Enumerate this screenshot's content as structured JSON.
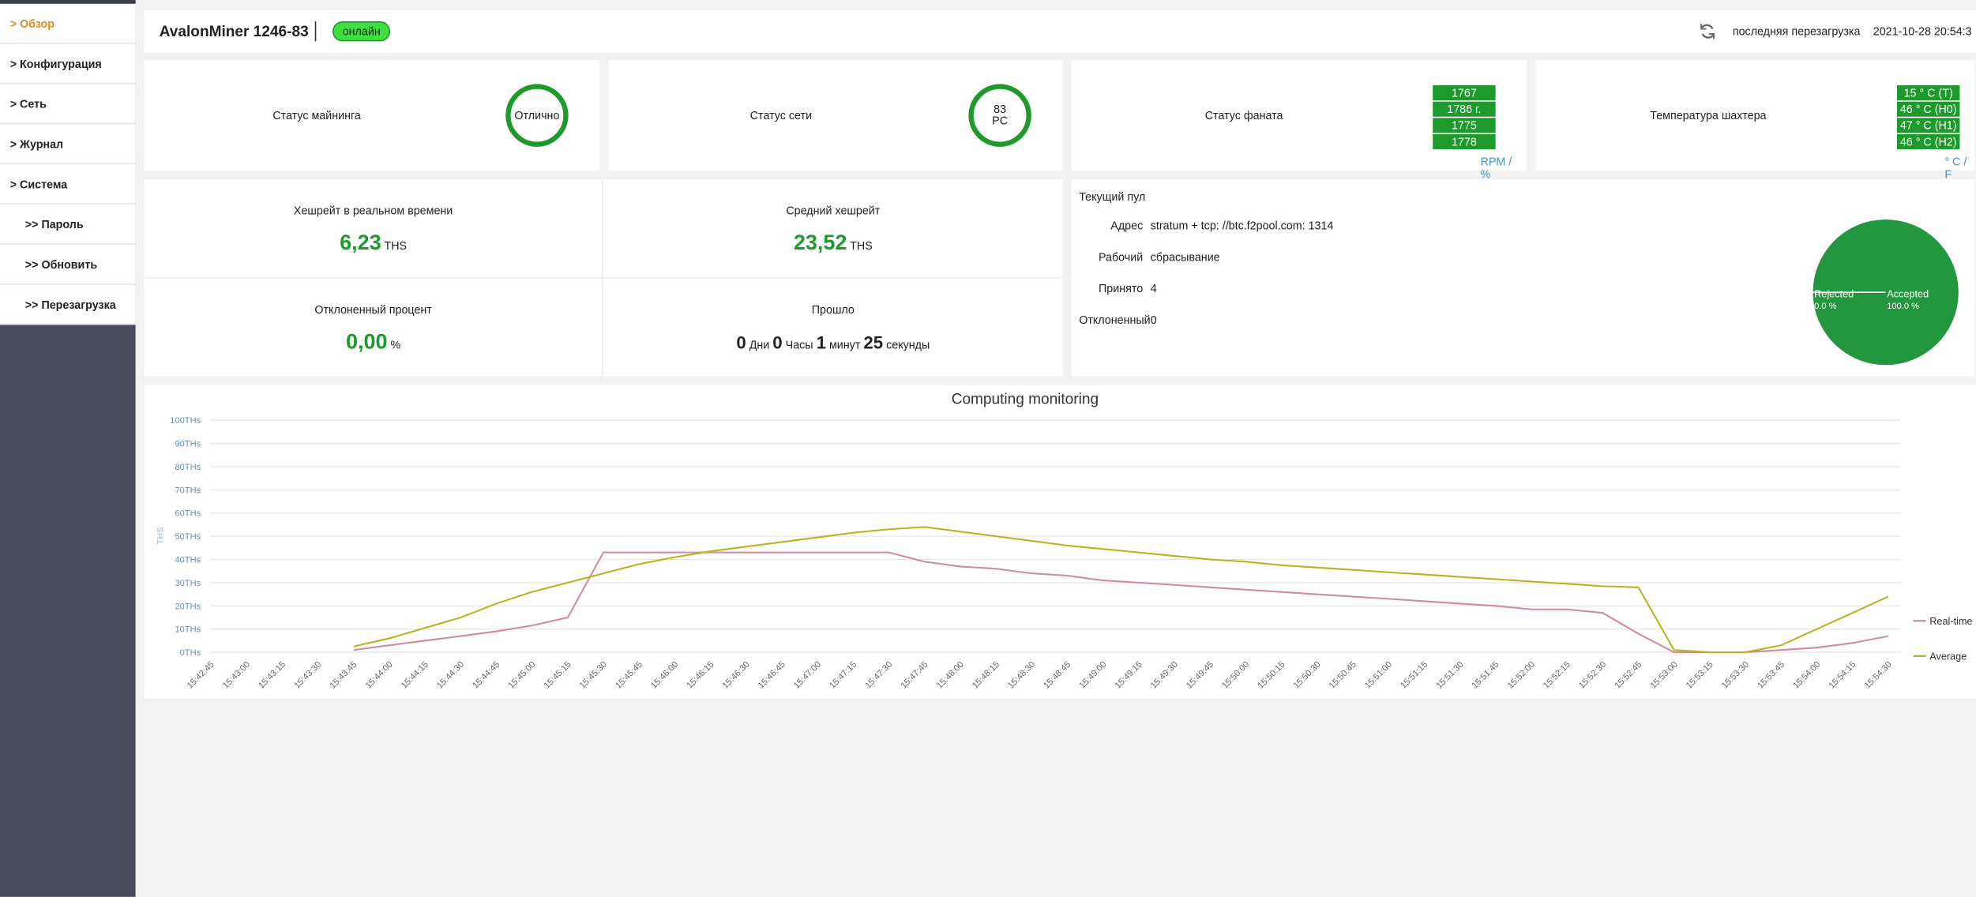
{
  "sidebar": {
    "items": [
      "> Обзор",
      "> Конфигурация",
      "> Сеть",
      "> Журнал",
      "> Система",
      ">> Пароль",
      ">> Обновить",
      ">> Перезагрузка"
    ]
  },
  "header": {
    "title": "AvalonMiner 1246-83",
    "status": "онлайн",
    "reboot_label": "последняя перезагрузка",
    "reboot_time": "2021-10-28 20:54:3"
  },
  "status_cards": [
    {
      "label": "Статус майнинга",
      "ring": "Отлично"
    },
    {
      "label": "Статус сети",
      "ring": "83 PC"
    }
  ],
  "fan": {
    "label": "Статус фаната",
    "rpm": [
      "1767",
      "1786 г.",
      "1775",
      "1778"
    ],
    "unit": "RPM / %"
  },
  "temperature": {
    "label": "Температура шахтера",
    "values": [
      "15 ° C (T)",
      "46 ° C (H0)",
      "47 ° C (H1)",
      "46 ° C (H2)"
    ],
    "unit": "° C / F"
  },
  "stats": [
    {
      "label": "Хешрейт в реальном времени",
      "value": "6,23",
      "unit": "THS"
    },
    {
      "label": "Средний хешрейт",
      "value": "23,52",
      "unit": "THS"
    },
    {
      "label": "Отклоненный процент",
      "value": "0,00",
      "unit": "%"
    }
  ],
  "elapsed": {
    "label": "Прошло",
    "parts": [
      {
        "value": "0",
        "unit": "Дни"
      },
      {
        "value": "0",
        "unit": "Часы"
      },
      {
        "value": "1",
        "unit": "минут"
      },
      {
        "value": "25",
        "unit": "секунды"
      }
    ]
  },
  "pool": {
    "title": "Текущий пул",
    "rows": [
      [
        "Адрес",
        "stratum + tcp: //btc.f2pool.com: 1314"
      ],
      [
        "Рабочий",
        "сбрасывание"
      ],
      [
        "Принято",
        "4"
      ],
      [
        "Отклоненный",
        "0"
      ]
    ]
  },
  "chart_data": [
    {
      "type": "line",
      "title": "Computing monitoring",
      "y_label": "THS",
      "categories": [
        "15:42:45",
        "15:43:00",
        "15:43:15",
        "15:43:30",
        "15:43:45",
        "15:44:00",
        "15:44:15",
        "15:44:30",
        "15:44:45",
        "15:45:00",
        "15:45:15",
        "15:45:30",
        "15:45:45",
        "15:46:00",
        "15:46:15",
        "15:46:30",
        "15:46:45",
        "15:47:00",
        "15:47:15",
        "15:47:30",
        "15:47:45",
        "15:48:00",
        "15:48:15",
        "15:48:30",
        "15:48:45",
        "15:49:00",
        "15:49:15",
        "15:49:30",
        "15:49:45",
        "15:50:00",
        "15:50:15",
        "15:50:30",
        "15:50:45",
        "15:51:00",
        "15:51:15",
        "15:51:30",
        "15:51:45",
        "15:52:00",
        "15:52:15",
        "15:52:30",
        "15:52:45",
        "15:53:00",
        "15:53:15",
        "15:53:30",
        "15:53:45",
        "15:54:00",
        "15:54:15",
        "15:54:30"
      ],
      "series": [
        {
          "name": "Real-time",
          "color": "#d48a9c",
          "values": [
            null,
            null,
            null,
            null,
            1,
            3,
            5,
            7,
            9,
            11.5,
            15,
            43,
            43,
            43,
            43,
            43,
            43,
            43,
            43,
            43,
            39,
            37,
            36,
            34,
            33,
            31,
            30,
            29,
            28,
            27,
            26,
            25,
            24,
            23,
            22,
            21,
            20,
            18.5,
            18.5,
            17,
            8,
            0,
            0,
            0,
            1,
            2,
            4,
            7
          ]
        },
        {
          "name": "Average",
          "color": "#b5b521",
          "values": [
            null,
            null,
            null,
            null,
            2.5,
            6,
            10.5,
            15,
            21,
            26,
            30,
            34,
            38,
            41,
            43.5,
            45.5,
            47.5,
            49.5,
            51.5,
            53,
            54,
            52,
            50,
            48,
            46,
            44.5,
            43,
            41.5,
            40,
            39,
            37.5,
            36.5,
            35.5,
            34.5,
            33.5,
            32.5,
            31.5,
            30.5,
            29.5,
            28.5,
            28,
            1,
            0,
            0,
            3,
            10,
            17,
            24
          ]
        }
      ],
      "ylim": [
        0,
        100
      ],
      "yticks": [
        {
          "value": 0,
          "label": "0THs"
        },
        {
          "value": 10,
          "label": "10THs"
        },
        {
          "value": 20,
          "label": "20THs"
        },
        {
          "value": 30,
          "label": "30THs"
        },
        {
          "value": 40,
          "label": "40THs"
        },
        {
          "value": 50,
          "label": "50THs"
        },
        {
          "value": 60,
          "label": "60THs"
        },
        {
          "value": 70,
          "label": "70THs"
        },
        {
          "value": 80,
          "label": "80THs"
        },
        {
          "value": 90,
          "label": "90THs"
        },
        {
          "value": 100,
          "label": "100THs"
        }
      ],
      "grid": true,
      "legend": "right"
    },
    {
      "type": "pie",
      "categories": [
        "Rejected",
        "Accepted"
      ],
      "values": [
        0,
        100
      ],
      "value_labels": [
        "0.0 %",
        "100.0 %"
      ],
      "colors": [
        "#ffffff",
        "#22973f"
      ]
    }
  ]
}
